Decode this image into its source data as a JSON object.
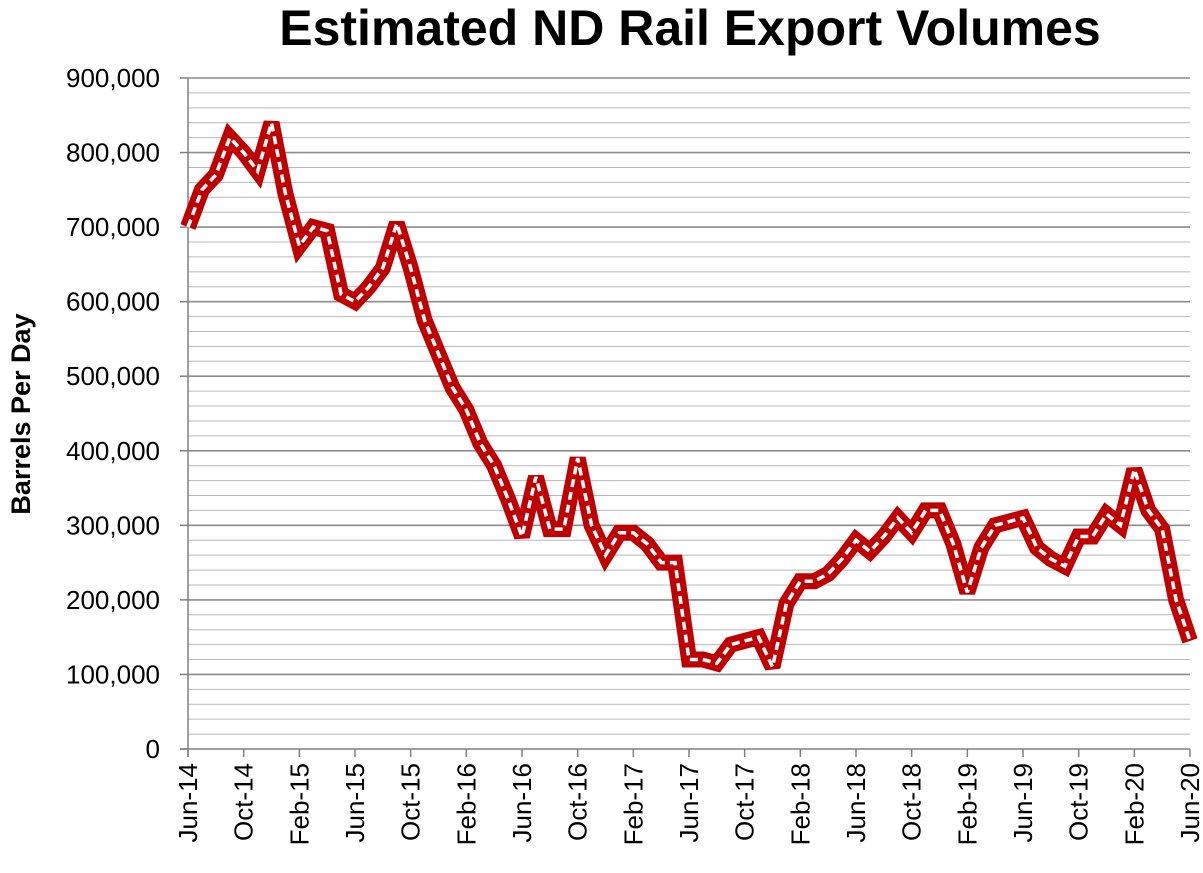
{
  "chart_data": {
    "type": "line",
    "title": "Estimated ND Rail Export Volumes",
    "xlabel": "",
    "ylabel": "Barrels Per Day",
    "ylim": [
      0,
      900000
    ],
    "yticks": [
      "0",
      "100,000",
      "200,000",
      "300,000",
      "400,000",
      "500,000",
      "600,000",
      "700,000",
      "800,000",
      "900,000"
    ],
    "xtick_labels": [
      "Jun-14",
      "Oct-14",
      "Feb-15",
      "Jun-15",
      "Oct-15",
      "Feb-16",
      "Jun-16",
      "Oct-16",
      "Feb-17",
      "Jun-17",
      "Oct-17",
      "Feb-18",
      "Jun-18",
      "Oct-18",
      "Feb-19",
      "Jun-19",
      "Oct-19",
      "Feb-20",
      "Jun-20"
    ],
    "grid": true,
    "colors": {
      "line": "#c00000",
      "line_inner": "#ffffff",
      "grid": "#a6a6a6"
    },
    "x": [
      "Jun-14",
      "Jul-14",
      "Aug-14",
      "Sep-14",
      "Oct-14",
      "Nov-14",
      "Dec-14",
      "Jan-15",
      "Feb-15",
      "Mar-15",
      "Apr-15",
      "May-15",
      "Jun-15",
      "Jul-15",
      "Aug-15",
      "Sep-15",
      "Oct-15",
      "Nov-15",
      "Dec-15",
      "Jan-16",
      "Feb-16",
      "Mar-16",
      "Apr-16",
      "May-16",
      "Jun-16",
      "Jul-16",
      "Aug-16",
      "Sep-16",
      "Oct-16",
      "Nov-16",
      "Dec-16",
      "Jan-17",
      "Feb-17",
      "Mar-17",
      "Apr-17",
      "May-17",
      "Jun-17",
      "Jul-17",
      "Aug-17",
      "Sep-17",
      "Oct-17",
      "Nov-17",
      "Dec-17",
      "Jan-18",
      "Feb-18",
      "Mar-18",
      "Apr-18",
      "May-18",
      "Jun-18",
      "Jul-18",
      "Aug-18",
      "Sep-18",
      "Oct-18",
      "Nov-18",
      "Dec-18",
      "Jan-19",
      "Feb-19",
      "Mar-19",
      "Apr-19",
      "May-19",
      "Jun-19",
      "Jul-19",
      "Aug-19",
      "Sep-19",
      "Oct-19",
      "Nov-19",
      "Dec-19",
      "Jan-20",
      "Feb-20",
      "Mar-20",
      "Apr-20",
      "May-20",
      "Jun-20"
    ],
    "series": [
      {
        "values": [
          700000,
          750000,
          770000,
          820000,
          800000,
          775000,
          840000,
          745000,
          675000,
          700000,
          695000,
          610000,
          600000,
          620000,
          645000,
          705000,
          645000,
          575000,
          530000,
          485000,
          455000,
          410000,
          380000,
          335000,
          285000,
          365000,
          295000,
          295000,
          390000,
          300000,
          260000,
          290000,
          290000,
          275000,
          250000,
          250000,
          120000,
          120000,
          115000,
          140000,
          145000,
          150000,
          110000,
          195000,
          225000,
          225000,
          235000,
          255000,
          280000,
          265000,
          285000,
          310000,
          290000,
          320000,
          320000,
          275000,
          210000,
          270000,
          300000,
          305000,
          310000,
          270000,
          255000,
          245000,
          285000,
          285000,
          315000,
          300000,
          375000,
          320000,
          295000,
          200000,
          145000
        ]
      }
    ]
  }
}
